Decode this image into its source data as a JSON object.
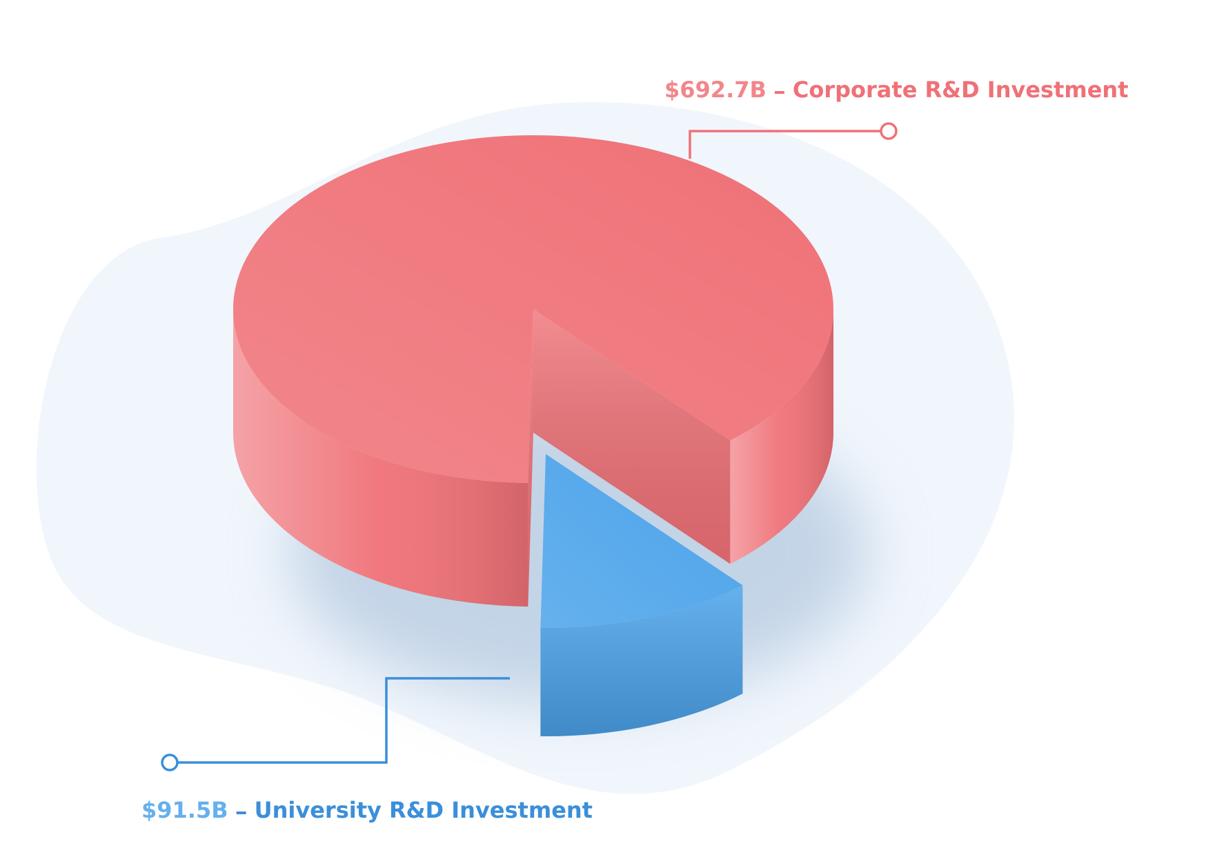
{
  "chart_data": {
    "type": "pie",
    "categories": [
      "Corporate R&D Investment",
      "University R&D Investment"
    ],
    "values": [
      692.7,
      91.5
    ],
    "value_labels": [
      "$692.7B",
      "$91.5B"
    ],
    "colors": [
      "#ef7177",
      "#4ba3ea"
    ]
  }
}
